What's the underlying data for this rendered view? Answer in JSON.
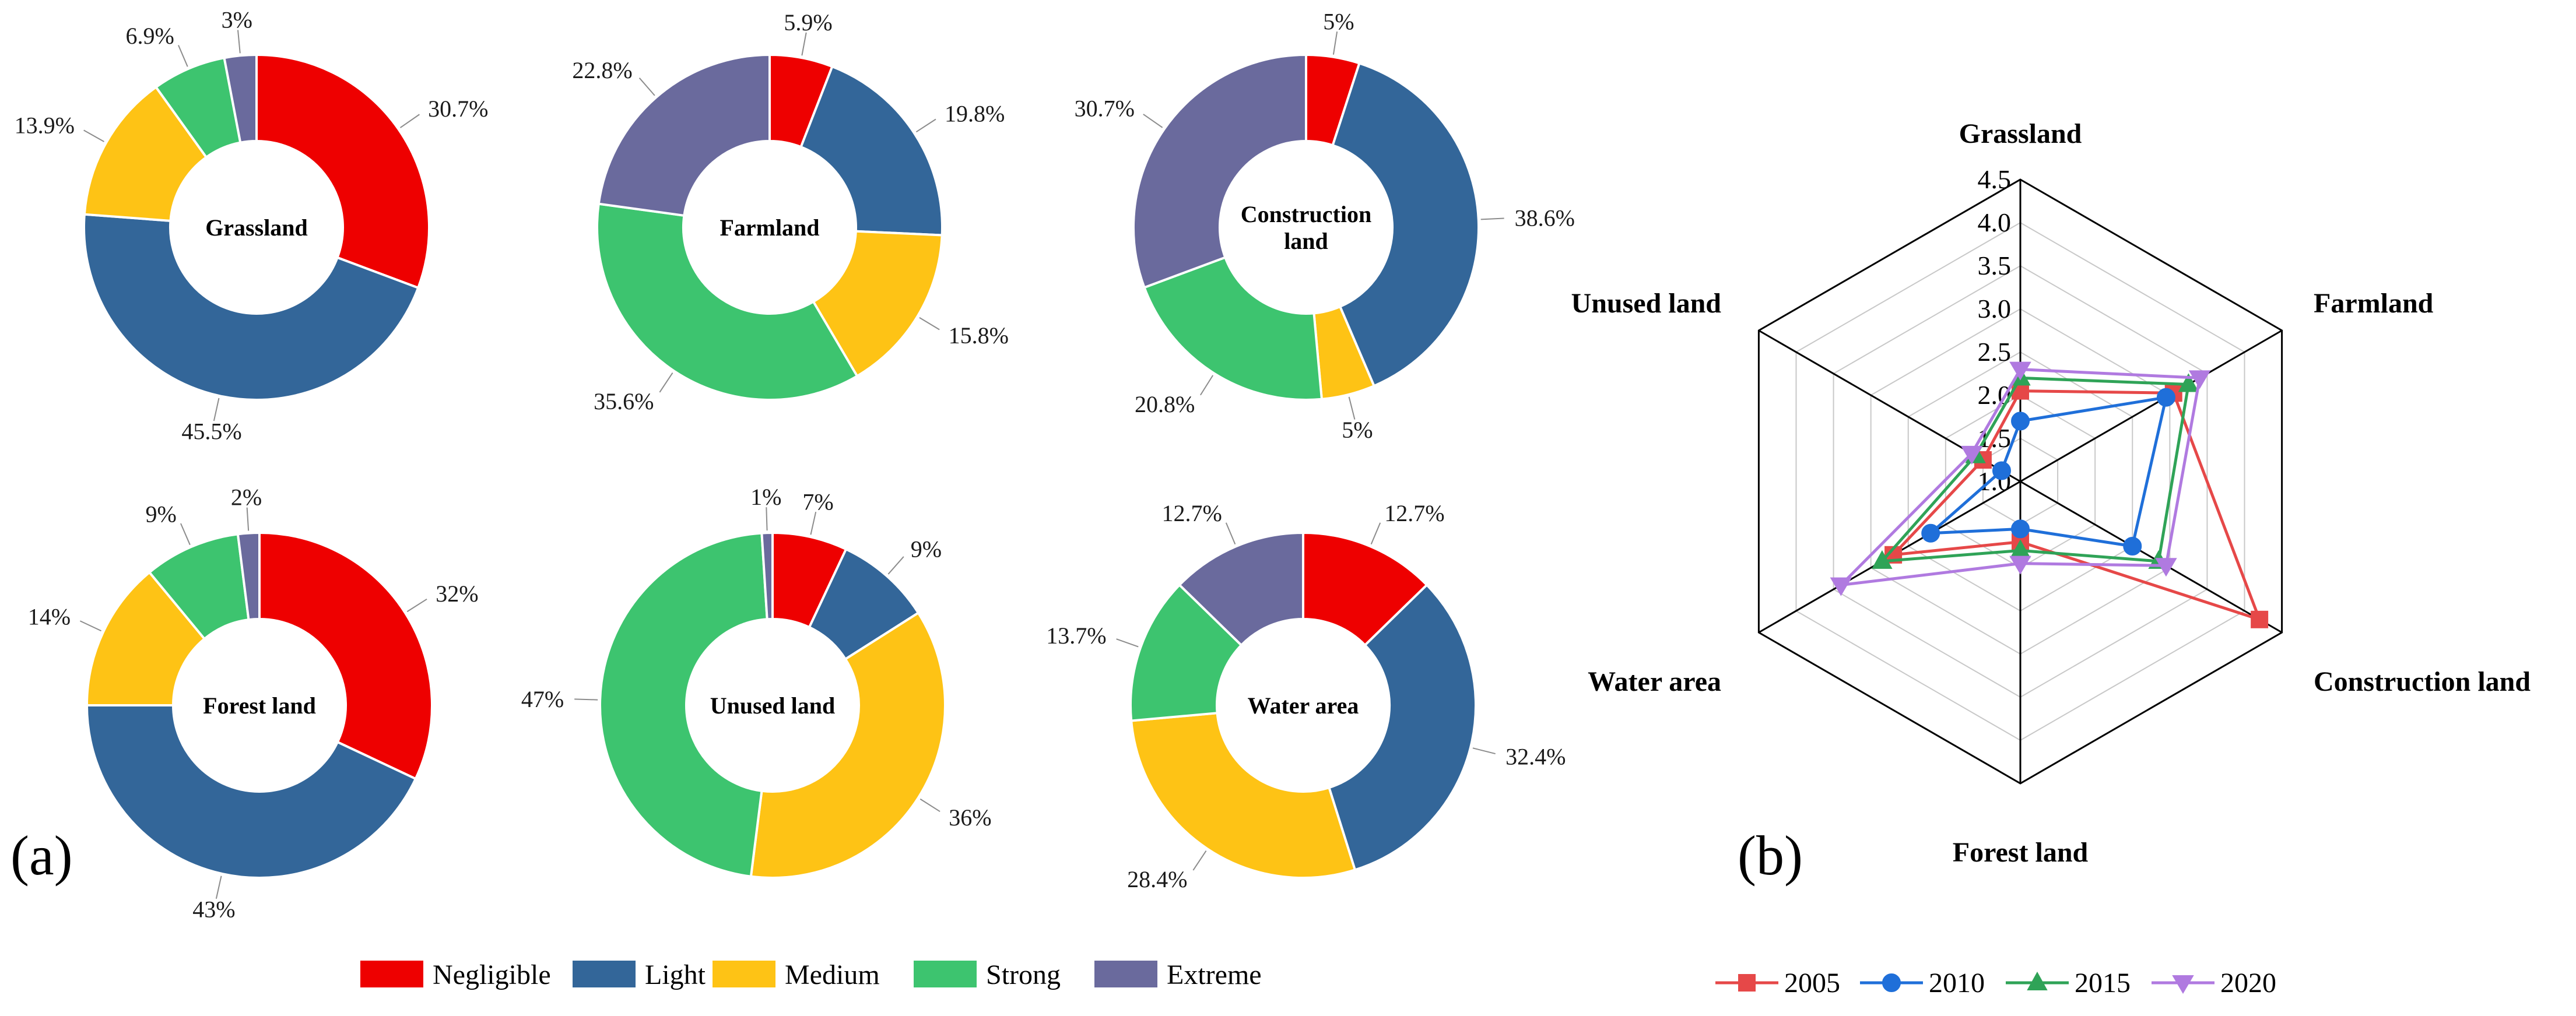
{
  "panel_labels": {
    "a": "(a)",
    "b": "(b)"
  },
  "colors": {
    "Negligible": "#ee0000",
    "Light": "#336699",
    "Medium": "#fec315",
    "Strong": "#3dc46f",
    "Extreme": "#6a6a9d",
    "radar_2005": "#e64848",
    "radar_2010": "#1f6fd9",
    "radar_2015": "#2fa357",
    "radar_2020": "#b07ae0"
  },
  "chart_data": [
    {
      "type": "pie",
      "title": "Grassland",
      "categories": [
        "Negligible",
        "Light",
        "Medium",
        "Strong",
        "Extreme"
      ],
      "values": [
        30.7,
        45.5,
        13.9,
        6.9,
        3
      ],
      "labels": [
        "30.7%",
        "45.5%",
        "13.9%",
        "6.9%",
        "3%"
      ]
    },
    {
      "type": "pie",
      "title": "Farmland",
      "categories": [
        "Negligible",
        "Light",
        "Medium",
        "Strong",
        "Extreme"
      ],
      "values": [
        5.9,
        19.8,
        15.8,
        35.6,
        22.8
      ],
      "labels": [
        "5.9%",
        "19.8%",
        "15.8%",
        "35.6%",
        "22.8%"
      ]
    },
    {
      "type": "pie",
      "title": "Construction land",
      "title_lines": [
        "Construction",
        "land"
      ],
      "categories": [
        "Negligible",
        "Light",
        "Medium",
        "Strong",
        "Extreme"
      ],
      "values": [
        5,
        38.6,
        5,
        20.8,
        30.7
      ],
      "labels": [
        "5%",
        "38.6%",
        "5%",
        "20.8%",
        "30.7%"
      ]
    },
    {
      "type": "pie",
      "title": "Forest land",
      "categories": [
        "Negligible",
        "Light",
        "Medium",
        "Strong",
        "Extreme"
      ],
      "values": [
        32,
        43,
        14,
        9,
        2
      ],
      "labels": [
        "32%",
        "43%",
        "14%",
        "9%",
        "2%"
      ]
    },
    {
      "type": "pie",
      "title": "Unused land",
      "categories": [
        "Negligible",
        "Light",
        "Medium",
        "Strong",
        "Extreme"
      ],
      "values": [
        7,
        9,
        36,
        47,
        1
      ],
      "labels": [
        "7%",
        "9%",
        "36%",
        "47%",
        "1%"
      ]
    },
    {
      "type": "pie",
      "title": "Water area",
      "categories": [
        "Negligible",
        "Light",
        "Medium",
        "Strong",
        "Extreme"
      ],
      "values": [
        12.7,
        32.4,
        28.4,
        13.7,
        12.7
      ],
      "labels": [
        "12.7%",
        "32.4%",
        "28.4%",
        "13.7%",
        "12.7%"
      ]
    },
    {
      "type": "radar",
      "axes": [
        "Grassland",
        "Farmland",
        "Construction land",
        "Forest land",
        "Water area",
        "Unused land"
      ],
      "rmin": 1.0,
      "rmax": 4.5,
      "ticks": [
        "1.0",
        "1.5",
        "2.0",
        "2.5",
        "3.0",
        "3.5",
        "4.0",
        "4.5"
      ],
      "series": [
        {
          "name": "2005",
          "values": [
            2.05,
            3.05,
            4.2,
            1.7,
            2.7,
            1.5
          ]
        },
        {
          "name": "2010",
          "values": [
            1.7,
            2.95,
            2.5,
            1.55,
            2.2,
            1.25
          ]
        },
        {
          "name": "2015",
          "values": [
            2.2,
            3.25,
            2.85,
            1.8,
            2.85,
            1.6
          ]
        },
        {
          "name": "2020",
          "values": [
            2.3,
            3.4,
            2.95,
            1.95,
            3.4,
            1.65
          ]
        }
      ],
      "legend": [
        "2005",
        "2010",
        "2015",
        "2020"
      ]
    }
  ],
  "pie_legend": [
    "Negligible",
    "Light",
    "Medium",
    "Strong",
    "Extreme"
  ]
}
